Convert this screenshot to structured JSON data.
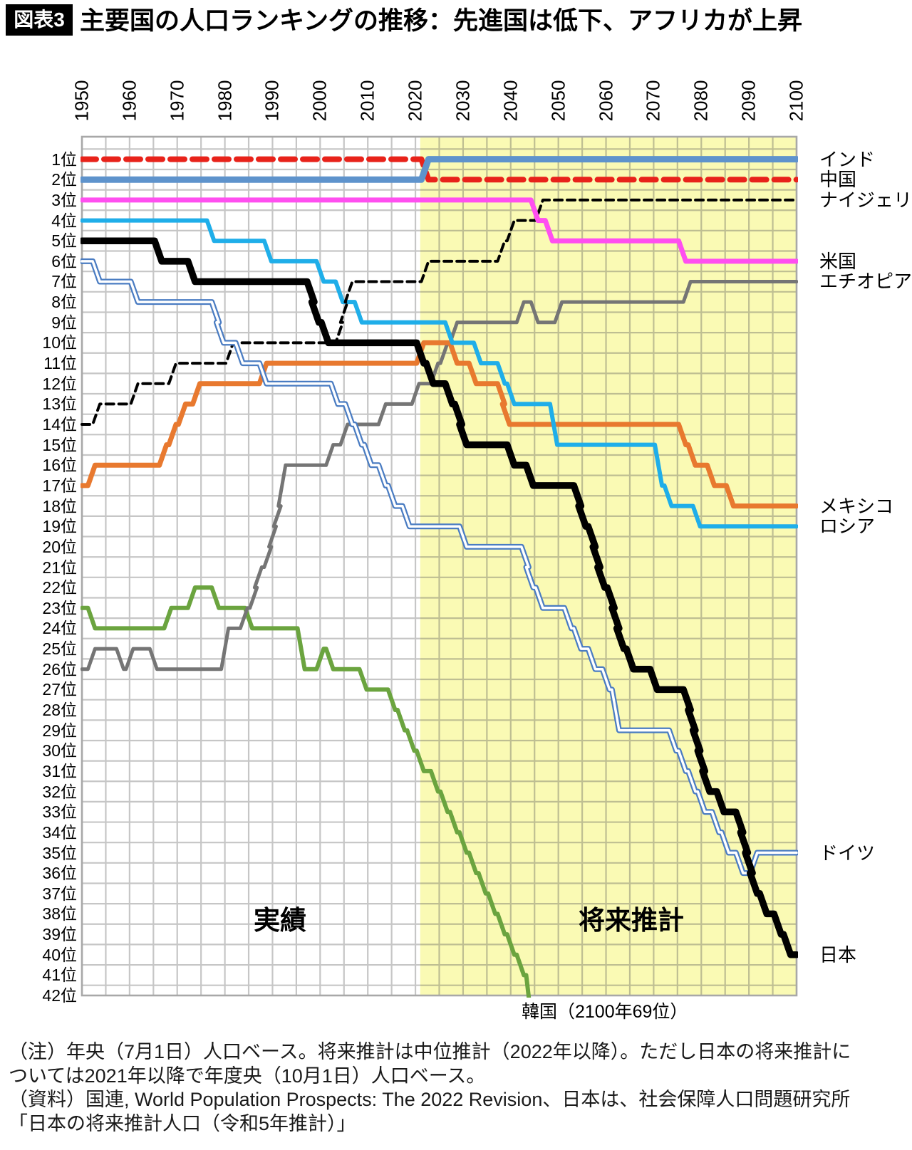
{
  "header": {
    "badge": "図表3",
    "title": "主要国の人口ランキングの推移：先進国は低下、アフリカが上昇"
  },
  "colors": {
    "background": "#ffffff",
    "projection_band": "#FAFAB4",
    "grid_actual": "#C6C6C6",
    "grid_projection": "#BEBE92",
    "plot_border": "#A8A8A8",
    "title_badge_bg": "#000000",
    "title_badge_text": "#ffffff"
  },
  "chart_data": {
    "type": "line",
    "subtype": "bump-ranking-chart",
    "title": "主要国の人口ランキングの推移",
    "x": {
      "min": 1950,
      "max": 2100,
      "grid_step_years": 5,
      "ticks": [
        1950,
        1960,
        1970,
        1980,
        1990,
        2000,
        2010,
        2020,
        2030,
        2040,
        2050,
        2060,
        2070,
        2080,
        2090,
        2100
      ]
    },
    "y": {
      "min": 1,
      "max": 42,
      "inverted": true,
      "unit": "位"
    },
    "projection_start_year": 2021,
    "grid": true,
    "phase_labels": {
      "actual": "実績",
      "projection": "将来推計"
    },
    "korea_note": "韓国（2100年69位）",
    "rank_labels": [
      "1位",
      "2位",
      "3位",
      "4位",
      "5位",
      "6位",
      "7位",
      "8位",
      "9位",
      "10位",
      "11位",
      "12位",
      "13位",
      "14位",
      "15位",
      "16位",
      "17位",
      "18位",
      "19位",
      "20位",
      "21位",
      "22位",
      "23位",
      "24位",
      "25位",
      "26位",
      "27位",
      "28位",
      "29位",
      "30位",
      "31位",
      "32位",
      "33位",
      "34位",
      "35位",
      "36位",
      "37位",
      "38位",
      "39位",
      "40位",
      "41位",
      "42位"
    ],
    "series": [
      {
        "id": "korea",
        "label": "韓国",
        "color": "#6BA43F",
        "width": 6,
        "breakpoints": [
          [
            1950,
            23
          ],
          [
            1952,
            24
          ],
          [
            1968,
            23
          ],
          [
            1973,
            22
          ],
          [
            1978,
            23
          ],
          [
            1985,
            24
          ],
          [
            1996,
            26
          ],
          [
            2000,
            25
          ],
          [
            2002,
            26
          ],
          [
            2009,
            27
          ],
          [
            2015,
            28
          ],
          [
            2017,
            29
          ],
          [
            2019,
            30
          ],
          [
            2021,
            31
          ],
          [
            2024,
            32
          ],
          [
            2026,
            33
          ],
          [
            2028,
            34
          ],
          [
            2030,
            35
          ],
          [
            2032,
            36
          ],
          [
            2034,
            37
          ],
          [
            2036,
            38
          ],
          [
            2038,
            39
          ],
          [
            2040,
            40
          ],
          [
            2042,
            41
          ],
          [
            2044,
            44
          ]
        ]
      },
      {
        "id": "ethiopia",
        "label": "エチオピア",
        "color": "#757575",
        "width": 5,
        "legend_rank": 7,
        "breakpoints": [
          [
            1950,
            26
          ],
          [
            1952,
            25
          ],
          [
            1958,
            26
          ],
          [
            1960,
            25
          ],
          [
            1965,
            26
          ],
          [
            1980,
            24
          ],
          [
            1984,
            23
          ],
          [
            1986,
            22
          ],
          [
            1987,
            21
          ],
          [
            1989,
            20
          ],
          [
            1990,
            19
          ],
          [
            1991,
            18
          ],
          [
            1992,
            16
          ],
          [
            2002,
            15
          ],
          [
            2005,
            14
          ],
          [
            2013,
            13
          ],
          [
            2020,
            12
          ],
          [
            2024,
            11
          ],
          [
            2026,
            10
          ],
          [
            2028,
            9
          ],
          [
            2042,
            8
          ],
          [
            2045,
            9
          ],
          [
            2050,
            8
          ],
          [
            2077,
            7
          ],
          [
            2100,
            7
          ]
        ]
      },
      {
        "id": "mexico",
        "label": "メキシコ",
        "color": "#E8792F",
        "width": 7,
        "legend_rank": 18,
        "breakpoints": [
          [
            1950,
            17
          ],
          [
            1952,
            16
          ],
          [
            1967,
            15
          ],
          [
            1969,
            14
          ],
          [
            1971,
            13
          ],
          [
            1974,
            12
          ],
          [
            1988,
            11
          ],
          [
            2021,
            10
          ],
          [
            2028,
            11
          ],
          [
            2032,
            12
          ],
          [
            2038,
            13
          ],
          [
            2039,
            14
          ],
          [
            2076,
            15
          ],
          [
            2078,
            16
          ],
          [
            2082,
            17
          ],
          [
            2086,
            18
          ],
          [
            2100,
            18
          ]
        ]
      },
      {
        "id": "russia",
        "label": "ロシア",
        "color": "#1FAEE9",
        "width": 6,
        "legend_rank": 19,
        "breakpoints": [
          [
            1950,
            4
          ],
          [
            1977,
            5
          ],
          [
            1989,
            6
          ],
          [
            2000,
            7
          ],
          [
            2004,
            8
          ],
          [
            2008,
            9
          ],
          [
            2027,
            10
          ],
          [
            2033,
            11
          ],
          [
            2038,
            12
          ],
          [
            2040,
            13
          ],
          [
            2049,
            15
          ],
          [
            2071,
            17
          ],
          [
            2073,
            18
          ],
          [
            2079,
            19
          ],
          [
            2100,
            19
          ]
        ]
      },
      {
        "id": "nigeria",
        "label": "ナイジェリア",
        "color": "#000000",
        "width": 4,
        "dash": "11 7",
        "legend_rank": 3,
        "breakpoints": [
          [
            1950,
            14
          ],
          [
            1953,
            13
          ],
          [
            1961,
            12
          ],
          [
            1969,
            11
          ],
          [
            1981,
            10
          ],
          [
            2004,
            9
          ],
          [
            2005,
            8
          ],
          [
            2006,
            7
          ],
          [
            2022,
            6
          ],
          [
            2038,
            5
          ],
          [
            2040,
            4
          ],
          [
            2046,
            3
          ],
          [
            2100,
            3
          ]
        ]
      },
      {
        "id": "germany",
        "label": "ドイツ",
        "color": "#4A7CC2",
        "width": 8,
        "double": true,
        "legend_rank": 35,
        "breakpoints": [
          [
            1950,
            6
          ],
          [
            1953,
            7
          ],
          [
            1961,
            8
          ],
          [
            1978,
            9
          ],
          [
            1979,
            10
          ],
          [
            1983,
            11
          ],
          [
            1988,
            12
          ],
          [
            2003,
            13
          ],
          [
            2006,
            14
          ],
          [
            2008,
            15
          ],
          [
            2010,
            16
          ],
          [
            2013,
            17
          ],
          [
            2015,
            18
          ],
          [
            2018,
            19
          ],
          [
            2030,
            20
          ],
          [
            2043,
            21
          ],
          [
            2044,
            22
          ],
          [
            2046,
            23
          ],
          [
            2052,
            24
          ],
          [
            2054,
            25
          ],
          [
            2057,
            26
          ],
          [
            2060,
            27
          ],
          [
            2062,
            29
          ],
          [
            2074,
            30
          ],
          [
            2076,
            31
          ],
          [
            2078,
            32
          ],
          [
            2080,
            33
          ],
          [
            2083,
            34
          ],
          [
            2085,
            35
          ],
          [
            2088,
            36
          ],
          [
            2091,
            35
          ],
          [
            2100,
            35
          ]
        ]
      },
      {
        "id": "usa",
        "label": "米国",
        "color": "#FF4FF0",
        "width": 7,
        "legend_rank": 6,
        "breakpoints": [
          [
            1950,
            3
          ],
          [
            2045,
            4
          ],
          [
            2048,
            5
          ],
          [
            2076,
            6
          ],
          [
            2100,
            6
          ]
        ]
      },
      {
        "id": "china",
        "label": "中国",
        "color": "#E8221A",
        "width": 8,
        "dash": "20 11",
        "legend_rank": 2,
        "breakpoints": [
          [
            1950,
            1
          ],
          [
            2022,
            2
          ],
          [
            2100,
            2
          ]
        ]
      },
      {
        "id": "india",
        "label": "インド",
        "color": "#5E93CC",
        "width": 9,
        "legend_rank": 1,
        "breakpoints": [
          [
            1950,
            2
          ],
          [
            2022,
            1
          ],
          [
            2100,
            1
          ]
        ]
      },
      {
        "id": "japan",
        "label": "日本",
        "color": "#000000",
        "width": 9.5,
        "legend_rank": 40,
        "breakpoints": [
          [
            1950,
            5
          ],
          [
            1966,
            6
          ],
          [
            1973,
            7
          ],
          [
            1998,
            8
          ],
          [
            1999,
            9
          ],
          [
            2001,
            10
          ],
          [
            2021,
            11
          ],
          [
            2023,
            12
          ],
          [
            2027,
            13
          ],
          [
            2029,
            14
          ],
          [
            2030,
            15
          ],
          [
            2040,
            16
          ],
          [
            2044,
            17
          ],
          [
            2054,
            18
          ],
          [
            2055,
            19
          ],
          [
            2057,
            20
          ],
          [
            2058,
            21
          ],
          [
            2059,
            22
          ],
          [
            2061,
            23
          ],
          [
            2062,
            24
          ],
          [
            2063,
            25
          ],
          [
            2065,
            26
          ],
          [
            2070,
            27
          ],
          [
            2077,
            28
          ],
          [
            2078,
            29
          ],
          [
            2079,
            30
          ],
          [
            2080,
            31
          ],
          [
            2081,
            32
          ],
          [
            2084,
            33
          ],
          [
            2088,
            34
          ],
          [
            2089,
            35
          ],
          [
            2090,
            36
          ],
          [
            2091,
            37
          ],
          [
            2093,
            38
          ],
          [
            2096,
            39
          ],
          [
            2098,
            40
          ],
          [
            2100,
            40
          ]
        ]
      }
    ]
  },
  "footer": {
    "note": "（注）年央（7月1日）人口ベース。将来推計は中位推計（2022年以降）。ただし日本の将来推計に\nついては2021年以降で年度央（10月1日）人口ベース。\n（資料）国連, World Population Prospects: The 2022 Revision、日本は、社会保障人口問題研究所\n「日本の将来推計人口（令和5年推計）」"
  }
}
